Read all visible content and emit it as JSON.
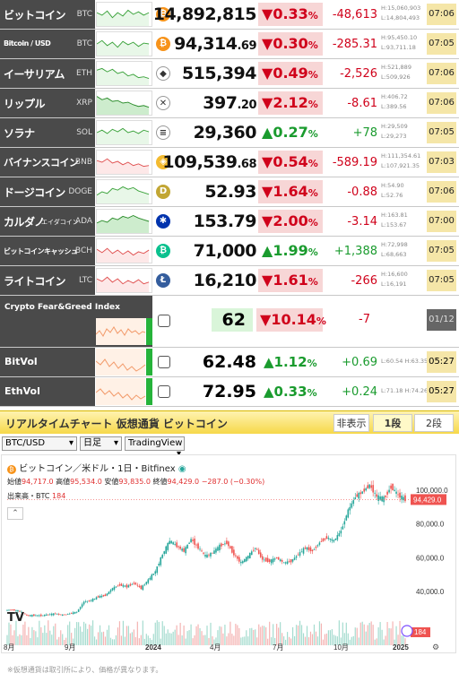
{
  "tickers": [
    {
      "name": "ビットコイン",
      "ticker": "BTC",
      "icon": "bitcoin-icon",
      "icon_color": "#f7931a",
      "icon_glyph": "₿",
      "price": "14,892,815",
      "price_dec": "",
      "pct": "0.33",
      "dir": "down",
      "change": "-48,613",
      "high": "H:15,060,903",
      "low": "L:14,804,493",
      "time": "07:06"
    },
    {
      "name": "Bitcoin / USD",
      "ticker": "BTC",
      "icon": "bitcoin-icon",
      "icon_color": "#f7931a",
      "icon_glyph": "₿",
      "price": "94,314",
      "price_dec": ".69",
      "pct": "0.30",
      "dir": "down",
      "change": "-285.31",
      "high": "H:95,450.10",
      "low": "L:93,711.18",
      "time": "07:05"
    },
    {
      "name": "イーサリアム",
      "ticker": "ETH",
      "icon": "ethereum-icon",
      "icon_color": "#ffffff",
      "icon_glyph": "◆",
      "price": "515,394",
      "price_dec": "",
      "pct": "0.49",
      "dir": "down",
      "change": "-2,526",
      "high": "H:521,889",
      "low": "L:509,926",
      "time": "07:06"
    },
    {
      "name": "リップル",
      "ticker": "XRP",
      "icon": "xrp-icon",
      "icon_color": "#ffffff",
      "icon_glyph": "✕",
      "price": "397",
      "price_dec": ".20",
      "pct": "2.12",
      "dir": "down",
      "change": "-8.61",
      "high": "H:406.72",
      "low": "L:389.56",
      "time": "07:06"
    },
    {
      "name": "ソラナ",
      "ticker": "SOL",
      "icon": "solana-icon",
      "icon_color": "#ffffff",
      "icon_glyph": "≡",
      "price": "29,360",
      "price_dec": "",
      "pct": "0.27",
      "dir": "up",
      "change": "+78",
      "high": "H:29,509",
      "low": "L:29,273",
      "time": "07:05"
    },
    {
      "name": "バイナンスコイン",
      "ticker": "BNB",
      "icon": "bnb-icon",
      "icon_color": "#f3ba2f",
      "icon_glyph": "◈",
      "price": "109,539",
      "price_dec": ".68",
      "pct": "0.54",
      "dir": "down",
      "change": "-589.19",
      "high": "H:111,354.61",
      "low": "L:107,921.35",
      "time": "07:03"
    },
    {
      "name": "ドージコイン",
      "ticker": "DOGE",
      "icon": "dogecoin-icon",
      "icon_color": "#c2a633",
      "icon_glyph": "D",
      "price": "52.93",
      "price_dec": "",
      "pct": "1.64",
      "dir": "down",
      "change": "-0.88",
      "high": "H:54.90",
      "low": "L:52.76",
      "time": "07:06"
    },
    {
      "name": "カルダノ",
      "name_small": "エイダコイン",
      "ticker": "ADA",
      "icon": "cardano-icon",
      "icon_color": "#0033ad",
      "icon_glyph": "✱",
      "price": "153.79",
      "price_dec": "",
      "pct": "2.00",
      "dir": "down",
      "change": "-3.14",
      "high": "H:163.81",
      "low": "L:153.67",
      "time": "07:00"
    },
    {
      "name": "ビットコインキャッシュ",
      "ticker": "BCH",
      "icon": "bitcoin-cash-icon",
      "icon_color": "#0ac18e",
      "icon_glyph": "₿",
      "price": "71,000",
      "price_dec": "",
      "pct": "1.99",
      "dir": "up",
      "change": "+1,388",
      "high": "H:72,998",
      "low": "L:68,663",
      "time": "07:05"
    },
    {
      "name": "ライトコイン",
      "ticker": "LTC",
      "icon": "litecoin-icon",
      "icon_color": "#345d9d",
      "icon_glyph": "Ł",
      "price": "16,210",
      "price_dec": "",
      "pct": "1.61",
      "dir": "down",
      "change": "-266",
      "high": "H:16,600",
      "low": "L:16,191",
      "time": "07:05"
    }
  ],
  "fear_greed": {
    "name": "Crypto Fear&Greed Index",
    "value": "62",
    "pct": "10.14",
    "change": "-7",
    "date": "01/12"
  },
  "vols": [
    {
      "name": "BitVol",
      "value": "62.48",
      "pct": "1.12",
      "change": "+0.69",
      "hl": "L:60.54 H:63.35",
      "time": "05:27"
    },
    {
      "name": "EthVol",
      "value": "72.95",
      "pct": "0.33",
      "change": "+0.24",
      "hl": "L:71.18 H:74.26",
      "time": "05:27"
    }
  ],
  "panel": {
    "title": "リアルタイムチャート 仮想通貨 ビットコイン",
    "tabs": [
      "非表示",
      "1段",
      "2段"
    ],
    "active_tab": 1
  },
  "controls": {
    "pair": "BTC/USD",
    "period": "日足",
    "source": "TradingView"
  },
  "chart_legend": {
    "title": "ビットコイン／米ドル・1日・Bitfinex",
    "open_label": "始値",
    "open": "94,717.0",
    "high_label": "高値",
    "high": "95,534.0",
    "low_label": "安値",
    "low": "93,835.0",
    "close_label": "終値",
    "close": "94,429.0",
    "change": "−287.0 (−0.30%)",
    "volume_label": "出来高・BTC",
    "volume": "184"
  },
  "chart_data": {
    "type": "candlestick",
    "title": "ビットコイン／米ドル・1日・Bitfinex",
    "x_ticks": [
      "8月",
      "9月",
      "2024",
      "4月",
      "7月",
      "10月",
      "2025"
    ],
    "y_ticks": [
      "100,000.0",
      "80,000.0",
      "60,000.0",
      "40,000.0"
    ],
    "last_price_label": "94,429.0",
    "volume_label": "184",
    "series": [
      {
        "values": [
          29000,
          29300,
          28500,
          26000,
          26000,
          25900,
          26500,
          27000,
          26200,
          27000,
          28000,
          34000,
          35000,
          37000,
          37800,
          42000,
          44000,
          43000,
          45000,
          42000,
          47000,
          52000,
          62000,
          70000,
          67000,
          64000,
          71000,
          66000,
          61000,
          63000,
          67000,
          69000,
          62000,
          57000,
          61000,
          66000,
          59000,
          58000,
          60000,
          57000,
          58000,
          62000,
          66000,
          64000,
          69000,
          72000,
          70000,
          76000,
          88000,
          96000,
          99000,
          103000,
          96000,
          95000,
          102000,
          97000,
          94429
        ]
      }
    ]
  },
  "footnote": "※仮想通貨は取引所により、価格が異なります。"
}
